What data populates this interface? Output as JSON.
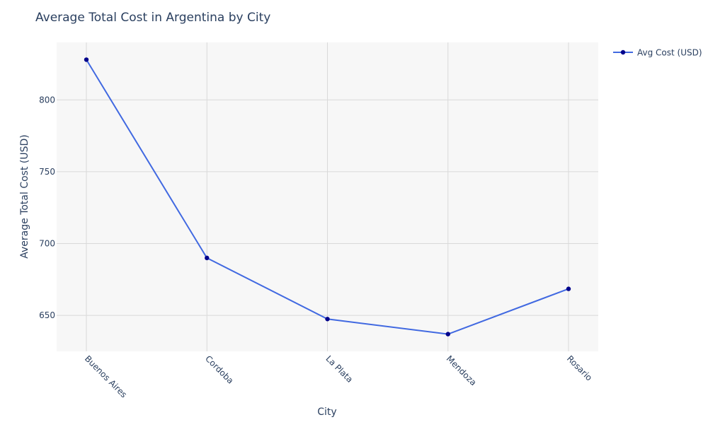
{
  "chart_data": {
    "type": "line",
    "title": "Average Total Cost in Argentina by City",
    "xlabel": "City",
    "ylabel": "Average Total Cost (USD)",
    "categories": [
      "Buenos Aires",
      "Cordoba",
      "La Plata",
      "Mendoza",
      "Rosario"
    ],
    "series": [
      {
        "name": "Avg Cost (USD)",
        "values": [
          828,
          690,
          647.5,
          637,
          668.5
        ]
      }
    ],
    "ylim": [
      625,
      840
    ],
    "yticks": [
      650,
      700,
      750,
      800
    ],
    "grid": true,
    "legend_position": "top-right",
    "colors": {
      "line": "#4169e1",
      "marker": "#00008b",
      "plot_bg": "#f7f7f7",
      "grid": "#d9d9d9",
      "text": "#2a3f5f"
    }
  }
}
